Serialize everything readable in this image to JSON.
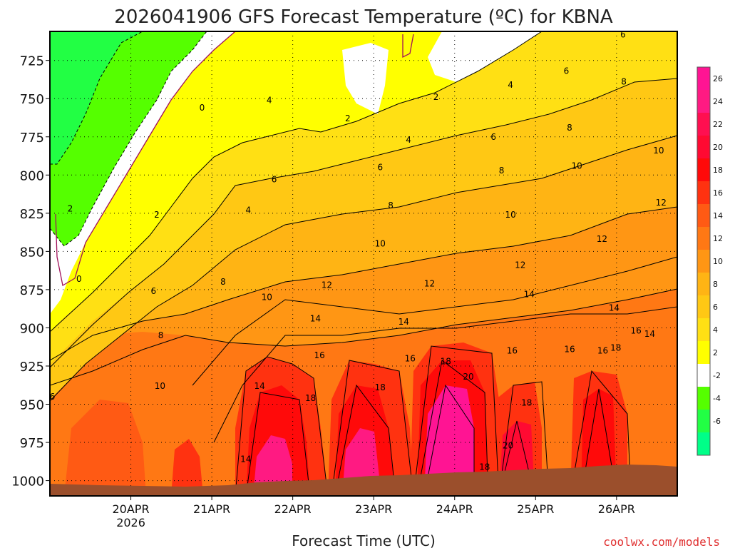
{
  "chart_data": {
    "type": "heatmap",
    "title": "2026041906 GFS Forecast Temperature (ºC) for KBNA",
    "xlabel": "Forecast Time (UTC)",
    "ylabel": "",
    "credit": "coolwx.com/models",
    "x_ticks": [
      {
        "label": "20APR",
        "sub": "2026",
        "day": 1.0
      },
      {
        "label": "21APR",
        "sub": "",
        "day": 2.0
      },
      {
        "label": "22APR",
        "sub": "",
        "day": 3.0
      },
      {
        "label": "23APR",
        "sub": "",
        "day": 4.0
      },
      {
        "label": "24APR",
        "sub": "",
        "day": 5.0
      },
      {
        "label": "25APR",
        "sub": "",
        "day": 6.0
      },
      {
        "label": "26APR",
        "sub": "",
        "day": 7.0
      }
    ],
    "xlim_days": [
      0.0,
      7.75
    ],
    "y_ticks": [
      725,
      750,
      775,
      800,
      825,
      850,
      875,
      900,
      925,
      950,
      975,
      1000
    ],
    "ylim_hpa": [
      1010,
      706
    ],
    "colorbar": {
      "ticks": [
        26,
        24,
        22,
        20,
        18,
        16,
        14,
        12,
        10,
        8,
        6,
        4,
        2,
        -2,
        -4,
        -6
      ],
      "bands": [
        {
          "min": 26,
          "max": 28,
          "color": "#ff1493"
        },
        {
          "min": 24,
          "max": 26,
          "color": "#ff1a82"
        },
        {
          "min": 22,
          "max": 24,
          "color": "#ff0f50"
        },
        {
          "min": 20,
          "max": 22,
          "color": "#ff0a32"
        },
        {
          "min": 18,
          "max": 20,
          "color": "#ff0a0a"
        },
        {
          "min": 16,
          "max": 18,
          "color": "#ff3210"
        },
        {
          "min": 14,
          "max": 16,
          "color": "#ff5a14"
        },
        {
          "min": 12,
          "max": 14,
          "color": "#ff7814"
        },
        {
          "min": 10,
          "max": 12,
          "color": "#ff9614"
        },
        {
          "min": 8,
          "max": 10,
          "color": "#ffb414"
        },
        {
          "min": 6,
          "max": 8,
          "color": "#ffc814"
        },
        {
          "min": 4,
          "max": 6,
          "color": "#ffe014"
        },
        {
          "min": 2,
          "max": 4,
          "color": "#ffff00"
        },
        {
          "min": -2,
          "max": 2,
          "color": "#ffffff"
        },
        {
          "min": -4,
          "max": -2,
          "color": "#55ff00"
        },
        {
          "min": -6,
          "max": -4,
          "color": "#22ff44"
        },
        {
          "min": -8,
          "max": -6,
          "color": "#00ff88"
        }
      ]
    },
    "contour_labels": [
      {
        "text": "2",
        "day": 0.25,
        "p": 822
      },
      {
        "text": "0",
        "day": 0.36,
        "p": 868
      },
      {
        "text": "6",
        "day": 0.03,
        "p": 945
      },
      {
        "text": "2",
        "day": 1.32,
        "p": 826
      },
      {
        "text": "0",
        "day": 1.88,
        "p": 756
      },
      {
        "text": "4",
        "day": 2.45,
        "p": 823
      },
      {
        "text": "4",
        "day": 2.71,
        "p": 751
      },
      {
        "text": "6",
        "day": 2.77,
        "p": 803
      },
      {
        "text": "6",
        "day": 1.28,
        "p": 876
      },
      {
        "text": "8",
        "day": 1.37,
        "p": 905
      },
      {
        "text": "10",
        "day": 1.36,
        "p": 938
      },
      {
        "text": "8",
        "day": 2.14,
        "p": 870
      },
      {
        "text": "10",
        "day": 2.68,
        "p": 880
      },
      {
        "text": "14",
        "day": 2.42,
        "p": 986
      },
      {
        "text": "14",
        "day": 2.59,
        "p": 938
      },
      {
        "text": "16",
        "day": 3.33,
        "p": 918
      },
      {
        "text": "18",
        "day": 3.22,
        "p": 946
      },
      {
        "text": "12",
        "day": 3.42,
        "p": 872
      },
      {
        "text": "14",
        "day": 3.28,
        "p": 894
      },
      {
        "text": "2",
        "day": 3.68,
        "p": 763
      },
      {
        "text": "2",
        "day": 4.77,
        "p": 749
      },
      {
        "text": "4",
        "day": 4.43,
        "p": 777
      },
      {
        "text": "6",
        "day": 4.08,
        "p": 795
      },
      {
        "text": "8",
        "day": 4.21,
        "p": 820
      },
      {
        "text": "10",
        "day": 4.08,
        "p": 845
      },
      {
        "text": "12",
        "day": 4.69,
        "p": 871
      },
      {
        "text": "14",
        "day": 4.37,
        "p": 896
      },
      {
        "text": "16",
        "day": 4.45,
        "p": 920
      },
      {
        "text": "18",
        "day": 4.08,
        "p": 939
      },
      {
        "text": "18",
        "day": 4.89,
        "p": 922
      },
      {
        "text": "20",
        "day": 5.17,
        "p": 932
      },
      {
        "text": "6",
        "day": 5.48,
        "p": 775
      },
      {
        "text": "4",
        "day": 5.69,
        "p": 741
      },
      {
        "text": "8",
        "day": 5.58,
        "p": 797
      },
      {
        "text": "10",
        "day": 5.69,
        "p": 826
      },
      {
        "text": "12",
        "day": 5.81,
        "p": 859
      },
      {
        "text": "14",
        "day": 5.92,
        "p": 878
      },
      {
        "text": "16",
        "day": 5.71,
        "p": 915
      },
      {
        "text": "18",
        "day": 5.89,
        "p": 949
      },
      {
        "text": "20",
        "day": 5.66,
        "p": 977
      },
      {
        "text": "18",
        "day": 5.37,
        "p": 991
      },
      {
        "text": "6",
        "day": 6.38,
        "p": 732
      },
      {
        "text": "8",
        "day": 6.42,
        "p": 769
      },
      {
        "text": "10",
        "day": 6.51,
        "p": 794
      },
      {
        "text": "6",
        "day": 7.08,
        "p": 708
      },
      {
        "text": "8",
        "day": 7.09,
        "p": 739
      },
      {
        "text": "10",
        "day": 7.52,
        "p": 784
      },
      {
        "text": "12",
        "day": 7.55,
        "p": 818
      },
      {
        "text": "12",
        "day": 6.82,
        "p": 842
      },
      {
        "text": "14",
        "day": 6.97,
        "p": 887
      },
      {
        "text": "16",
        "day": 6.42,
        "p": 914
      },
      {
        "text": "16",
        "day": 6.83,
        "p": 915
      },
      {
        "text": "18",
        "day": 6.99,
        "p": 913
      },
      {
        "text": "16",
        "day": 7.24,
        "p": 902
      },
      {
        "text": "14",
        "day": 7.41,
        "p": 904
      }
    ]
  }
}
